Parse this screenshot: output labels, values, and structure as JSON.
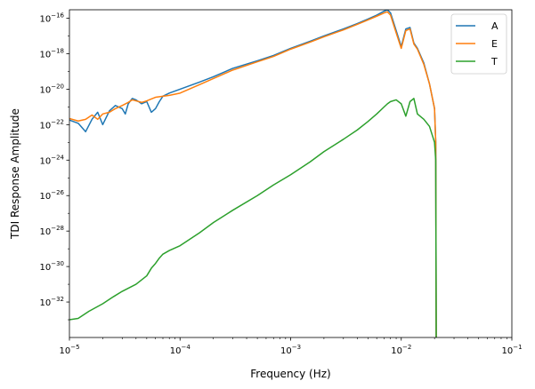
{
  "chart_data": {
    "type": "line",
    "title": "",
    "xlabel": "Frequency (Hz)",
    "ylabel": "TDI Response Amplitude",
    "xscale": "log",
    "yscale": "log",
    "xlim": [
      1e-05,
      0.1
    ],
    "ylim": [
      1e-34,
      3e-16
    ],
    "grid": false,
    "legend_position": "top-right",
    "x_ticks": [
      {
        "value": 1e-05,
        "base": "10",
        "exp": "−5"
      },
      {
        "value": 0.0001,
        "base": "10",
        "exp": "−4"
      },
      {
        "value": 0.001,
        "base": "10",
        "exp": "−3"
      },
      {
        "value": 0.01,
        "base": "10",
        "exp": "−2"
      },
      {
        "value": 0.1,
        "base": "10",
        "exp": "−1"
      }
    ],
    "y_ticks": [
      {
        "value": 1e-32,
        "base": "10",
        "exp": "−32"
      },
      {
        "value": 1e-30,
        "base": "10",
        "exp": "−30"
      },
      {
        "value": 1e-28,
        "base": "10",
        "exp": "−28"
      },
      {
        "value": 1e-26,
        "base": "10",
        "exp": "−26"
      },
      {
        "value": 1e-24,
        "base": "10",
        "exp": "−24"
      },
      {
        "value": 1e-22,
        "base": "10",
        "exp": "−22"
      },
      {
        "value": 1e-20,
        "base": "10",
        "exp": "−20"
      },
      {
        "value": 1e-18,
        "base": "10",
        "exp": "−18"
      },
      {
        "value": 1e-16,
        "base": "10",
        "exp": "−16"
      }
    ],
    "series": [
      {
        "name": "A",
        "color": "#1f77b4",
        "x": [
          1e-05,
          1.2e-05,
          1.4e-05,
          1.6e-05,
          1.8e-05,
          2e-05,
          2.3e-05,
          2.6e-05,
          3e-05,
          3.2e-05,
          3.4e-05,
          3.7e-05,
          4e-05,
          4.5e-05,
          5e-05,
          5.5e-05,
          6e-05,
          6.5e-05,
          7e-05,
          8e-05,
          0.0001,
          0.00015,
          0.0002,
          0.0003,
          0.0005,
          0.0007,
          0.001,
          0.0015,
          0.002,
          0.003,
          0.004,
          0.005,
          0.006,
          0.007,
          0.0075,
          0.008,
          0.009,
          0.01,
          0.011,
          0.012,
          0.013,
          0.014,
          0.016,
          0.018,
          0.02,
          0.0205,
          0.0207
        ],
        "y": [
          1.8e-22,
          1.2e-22,
          4e-23,
          2e-22,
          5e-22,
          1e-22,
          6e-22,
          1.2e-21,
          8e-22,
          4e-22,
          1.5e-21,
          3e-21,
          2.5e-21,
          1.5e-21,
          2e-21,
          5e-22,
          8e-22,
          2e-21,
          4e-21,
          6e-21,
          1e-20,
          2.5e-20,
          5e-20,
          1.5e-19,
          4e-19,
          8e-19,
          2e-18,
          5e-18,
          1e-17,
          2.5e-17,
          5e-17,
          9e-17,
          1.5e-16,
          2.5e-16,
          3e-16,
          2e-16,
          2e-17,
          2.5e-18,
          2.5e-17,
          3e-17,
          4e-18,
          2e-18,
          3e-19,
          2e-20,
          8e-22,
          1e-23,
          1e-34
        ]
      },
      {
        "name": "E",
        "color": "#ff7f0e",
        "x": [
          1e-05,
          1.2e-05,
          1.4e-05,
          1.6e-05,
          1.8e-05,
          2e-05,
          2.3e-05,
          2.6e-05,
          3e-05,
          3.4e-05,
          3.7e-05,
          4e-05,
          4.5e-05,
          5e-05,
          5.5e-05,
          6e-05,
          7e-05,
          8e-05,
          0.0001,
          0.00015,
          0.0002,
          0.0003,
          0.0005,
          0.0007,
          0.001,
          0.0015,
          0.002,
          0.003,
          0.004,
          0.005,
          0.006,
          0.007,
          0.0075,
          0.008,
          0.009,
          0.01,
          0.011,
          0.012,
          0.013,
          0.014,
          0.016,
          0.018,
          0.02,
          0.0205,
          0.0207
        ],
        "y": [
          2.2e-22,
          1.6e-22,
          2e-22,
          3.5e-22,
          2e-22,
          4e-22,
          5e-22,
          8e-22,
          1.2e-21,
          1.8e-21,
          2.5e-21,
          2.2e-21,
          1.8e-21,
          2.2e-21,
          2.8e-21,
          3.5e-21,
          4e-21,
          4.5e-21,
          6e-21,
          1.8e-20,
          4e-20,
          1.2e-19,
          3.5e-19,
          7e-19,
          1.8e-18,
          4.5e-18,
          9e-18,
          2.2e-17,
          4.5e-17,
          8e-17,
          1.3e-16,
          2e-16,
          2.3e-16,
          1.5e-16,
          1.5e-17,
          2e-18,
          2e-17,
          2.5e-17,
          3.5e-18,
          1.8e-18,
          2.5e-19,
          2e-20,
          8e-22,
          1e-23,
          1e-34
        ]
      },
      {
        "name": "T",
        "color": "#2ca02c",
        "x": [
          1e-05,
          1.2e-05,
          1.5e-05,
          2e-05,
          2.5e-05,
          3e-05,
          4e-05,
          5e-05,
          5.5e-05,
          6e-05,
          6.5e-05,
          7e-05,
          8e-05,
          0.0001,
          0.00015,
          0.0002,
          0.0003,
          0.0005,
          0.0007,
          0.001,
          0.0015,
          0.002,
          0.003,
          0.004,
          0.005,
          0.006,
          0.007,
          0.0075,
          0.008,
          0.009,
          0.01,
          0.011,
          0.012,
          0.013,
          0.014,
          0.016,
          0.018,
          0.02,
          0.0205,
          0.0207
        ],
        "y": [
          1e-33,
          1.2e-33,
          3e-33,
          8e-33,
          2e-32,
          4e-32,
          1e-31,
          3e-31,
          8e-31,
          1.5e-30,
          3e-30,
          5e-30,
          8e-30,
          1.5e-29,
          8e-29,
          3e-28,
          1.5e-27,
          1e-26,
          4e-26,
          1.5e-25,
          8e-25,
          3e-24,
          1.5e-23,
          5e-23,
          1.5e-22,
          4e-22,
          1e-21,
          1.5e-21,
          2e-21,
          2.5e-21,
          1.5e-21,
          3e-22,
          2e-21,
          3e-21,
          4e-22,
          2e-22,
          8e-23,
          1e-23,
          1e-24,
          1e-34
        ]
      }
    ]
  }
}
